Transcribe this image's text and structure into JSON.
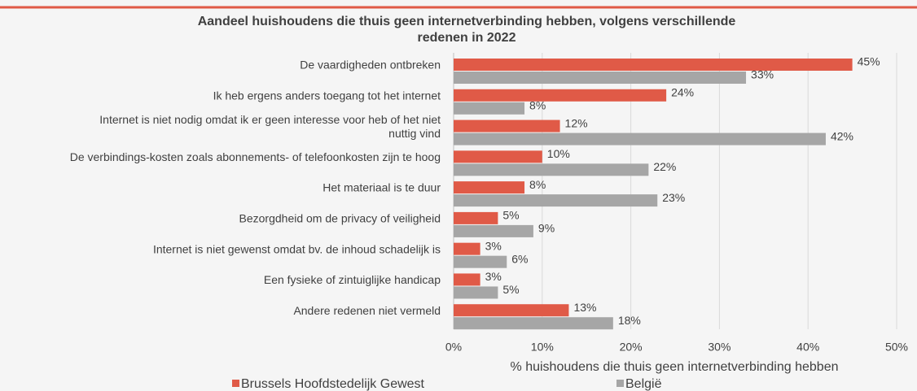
{
  "chart_data": {
    "type": "barh",
    "title": "Aandeel huishoudens die thuis geen internetverbinding hebben, volgens verschillende redenen in 2022",
    "categories": [
      "De vaardigheden ontbreken",
      "Ik heb ergens anders toegang tot het internet",
      "Internet is niet nodig omdat ik er geen interesse voor heb of het niet nuttig vind",
      "De verbindings-kosten zoals abonnements- of telefoonkosten zijn te hoog",
      "Het materiaal is te duur",
      "Bezorgdheid om de privacy of veiligheid",
      "Internet is niet gewenst omdat bv. de inhoud schadelijk is",
      "Een fysieke of zintuiglijke handicap",
      "Andere redenen niet vermeld"
    ],
    "series": [
      {
        "name": "Brussels Hoofdstedelijk Gewest",
        "color": "#e05a47",
        "values": [
          45,
          24,
          12,
          10,
          8,
          5,
          3,
          3,
          13
        ],
        "value_labels": [
          "45%",
          "24%",
          "12%",
          "10%",
          "8%",
          "5%",
          "3%",
          "3%",
          "13%"
        ]
      },
      {
        "name": "België",
        "color": "#a6a6a6",
        "values": [
          33,
          8,
          42,
          22,
          23,
          9,
          6,
          5,
          18
        ],
        "value_labels": [
          "33%",
          "8%",
          "42%",
          "22%",
          "23%",
          "9%",
          "6%",
          "5%",
          "18%"
        ]
      }
    ],
    "xlabel": "% huishoudens die thuis geen internetverbinding hebben",
    "xlim": [
      0,
      50
    ],
    "xticks": [
      {
        "value": 0,
        "label": "0%"
      },
      {
        "value": 10,
        "label": "10%"
      },
      {
        "value": 20,
        "label": "20%"
      },
      {
        "value": 30,
        "label": "30%"
      },
      {
        "value": 40,
        "label": "40%"
      },
      {
        "value": 50,
        "label": "50%"
      }
    ],
    "grid": true,
    "legend": "bottom"
  }
}
